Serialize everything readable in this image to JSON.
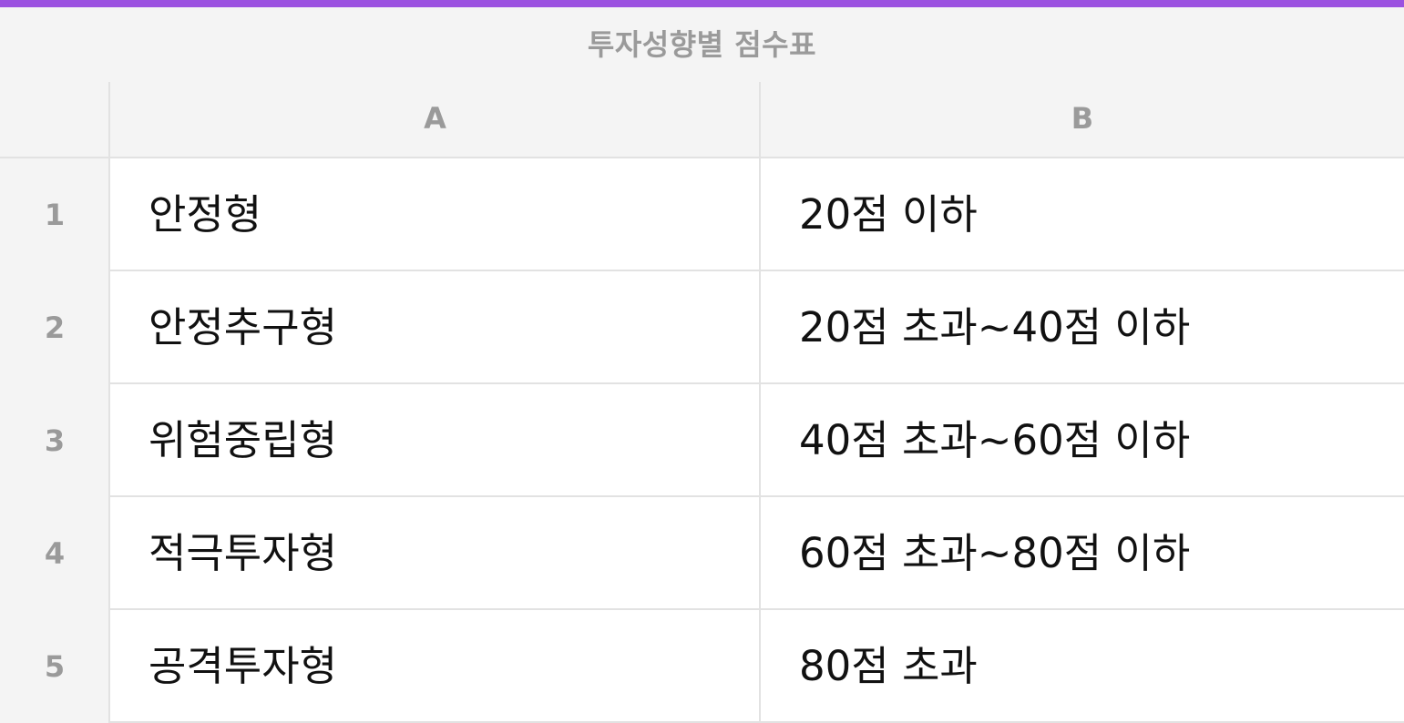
{
  "colors": {
    "accent": "#9b51e0",
    "header_bg": "#f4f4f4",
    "header_text": "#9a9a9a",
    "grid_line": "#e2e2e2",
    "cell_text": "#111111"
  },
  "sheet": {
    "title": "투자성향별 점수표",
    "columns": [
      {
        "label": "A"
      },
      {
        "label": "B"
      }
    ],
    "rows": [
      {
        "num": "1",
        "a": "안정형",
        "b": "20점 이하"
      },
      {
        "num": "2",
        "a": "안정추구형",
        "b": "20점 초과~40점 이하"
      },
      {
        "num": "3",
        "a": "위험중립형",
        "b": "40점 초과~60점 이하"
      },
      {
        "num": "4",
        "a": "적극투자형",
        "b": "60점 초과~80점 이하"
      },
      {
        "num": "5",
        "a": "공격투자형",
        "b": "80점 초과"
      }
    ]
  }
}
